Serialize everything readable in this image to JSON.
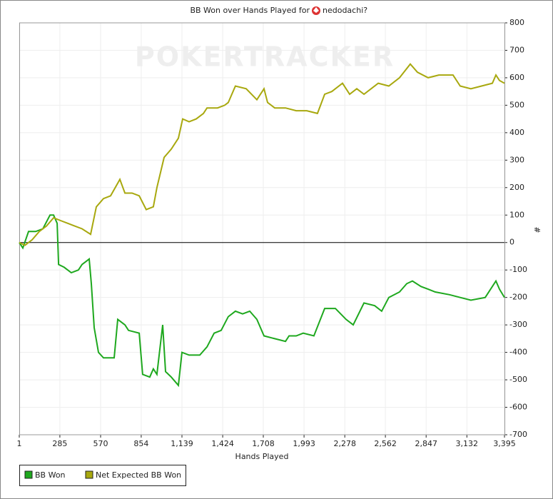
{
  "chart_data": {
    "type": "line",
    "title": "BB Won over Hands Played for",
    "player": "nedodachi?",
    "watermark": "POKERTRACKER",
    "x_label": "Hands Played",
    "y_label": "#",
    "xlim": [
      1,
      3395
    ],
    "ylim": [
      -700,
      800
    ],
    "xticks": [
      1,
      285,
      570,
      854,
      {
        "value": 1139,
        "label": "1,139"
      },
      {
        "value": 1424,
        "label": "1,424"
      },
      {
        "value": 1708,
        "label": "1,708"
      },
      {
        "value": 1993,
        "label": "1,993"
      },
      {
        "value": 2278,
        "label": "2,278"
      },
      {
        "value": 2562,
        "label": "2,562"
      },
      {
        "value": 2847,
        "label": "2,847"
      },
      {
        "value": 3132,
        "label": "3,132"
      },
      {
        "value": 3395,
        "label": "3,395"
      }
    ],
    "yticks": [
      -700,
      -600,
      -500,
      -400,
      -300,
      -200,
      -100,
      0,
      100,
      200,
      300,
      400,
      500,
      600,
      700,
      800
    ],
    "grid": true,
    "series": [
      {
        "name": "BB Won",
        "color": "#1ea81e",
        "x": [
          1,
          26,
          66,
          116,
          166,
          216,
          241,
          266,
          276,
          315,
          365,
          415,
          440,
          465,
          490,
          505,
          525,
          555,
          590,
          665,
          690,
          740,
          765,
          840,
          864,
          914,
          939,
          964,
          1004,
          1024,
          1064,
          1114,
          1139,
          1189,
          1264,
          1314,
          1364,
          1413,
          1463,
          1513,
          1563,
          1613,
          1663,
          1713,
          1788,
          1863,
          1888,
          1938,
          1987,
          2062,
          2137,
          2212,
          2287,
          2337,
          2412,
          2487,
          2536,
          2586,
          2661,
          2711,
          2751,
          2811,
          2861,
          2911,
          3010,
          3085,
          3160,
          3260,
          3335,
          3360,
          3395
        ],
        "values": [
          0,
          -20,
          40,
          40,
          50,
          100,
          100,
          70,
          -80,
          -90,
          -110,
          -100,
          -80,
          -70,
          -60,
          -150,
          -310,
          -400,
          -420,
          -420,
          -280,
          -300,
          -320,
          -330,
          -480,
          -490,
          -460,
          -480,
          -300,
          -470,
          -490,
          -520,
          -400,
          -410,
          -410,
          -380,
          -330,
          -320,
          -270,
          -250,
          -260,
          -250,
          -280,
          -340,
          -350,
          -360,
          -340,
          -340,
          -330,
          -340,
          -240,
          -240,
          -280,
          -300,
          -220,
          -230,
          -250,
          -200,
          -180,
          -150,
          -140,
          -160,
          -170,
          -180,
          -190,
          -200,
          -210,
          -200,
          -140,
          -170,
          -200
        ]
      },
      {
        "name": "Net Expected BB Won",
        "color": "#a8a80e",
        "x": [
          1,
          41,
          91,
          141,
          191,
          241,
          290,
          340,
          390,
          440,
          500,
          540,
          590,
          640,
          705,
          740,
          790,
          840,
          889,
          939,
          964,
          1014,
          1064,
          1114,
          1144,
          1189,
          1239,
          1289,
          1314,
          1388,
          1438,
          1463,
          1513,
          1588,
          1663,
          1713,
          1738,
          1788,
          1863,
          1938,
          2012,
          2087,
          2137,
          2187,
          2262,
          2312,
          2362,
          2412,
          2462,
          2512,
          2586,
          2661,
          2736,
          2786,
          2861,
          2936,
          3035,
          3085,
          3160,
          3235,
          3310,
          3335,
          3360,
          3395
        ],
        "values": [
          0,
          -10,
          10,
          40,
          60,
          90,
          80,
          70,
          60,
          50,
          30,
          130,
          160,
          170,
          230,
          180,
          180,
          170,
          120,
          130,
          200,
          310,
          340,
          380,
          450,
          440,
          450,
          470,
          490,
          490,
          500,
          510,
          570,
          560,
          520,
          560,
          510,
          490,
          490,
          480,
          480,
          470,
          540,
          550,
          580,
          540,
          560,
          540,
          560,
          580,
          570,
          600,
          650,
          620,
          600,
          610,
          610,
          570,
          560,
          570,
          580,
          610,
          590,
          580
        ]
      }
    ]
  }
}
